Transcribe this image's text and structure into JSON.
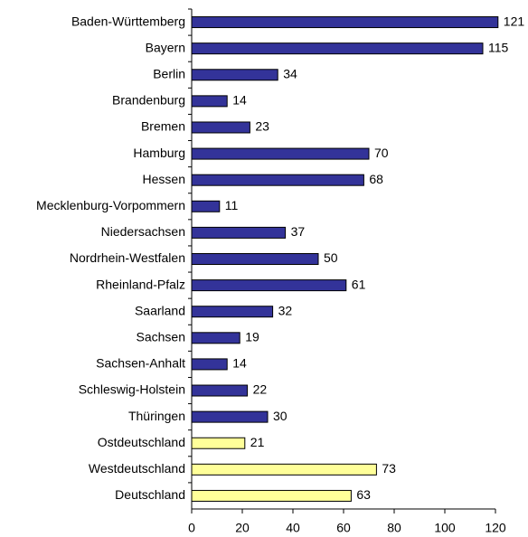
{
  "chart_data": {
    "type": "barh",
    "categories": [
      "Baden-Württemberg",
      "Bayern",
      "Berlin",
      "Brandenburg",
      "Bremen",
      "Hamburg",
      "Hessen",
      "Mecklenburg-Vorpommern",
      "Niedersachsen",
      "Nordrhein-Westfalen",
      "Rheinland-Pfalz",
      "Saarland",
      "Sachsen",
      "Sachsen-Anhalt",
      "Schleswig-Holstein",
      "Thüringen",
      "Ostdeutschland",
      "Westdeutschland",
      "Deutschland"
    ],
    "values": [
      121,
      115,
      34,
      14,
      23,
      70,
      68,
      11,
      37,
      50,
      61,
      32,
      19,
      14,
      22,
      30,
      21,
      73,
      63
    ],
    "colors": [
      "#333399",
      "#333399",
      "#333399",
      "#333399",
      "#333399",
      "#333399",
      "#333399",
      "#333399",
      "#333399",
      "#333399",
      "#333399",
      "#333399",
      "#333399",
      "#333399",
      "#333399",
      "#333399",
      "#ffff99",
      "#ffff99",
      "#ffff99"
    ],
    "xlim": [
      0,
      120
    ],
    "xticks": [
      0,
      20,
      40,
      60,
      80,
      100,
      120
    ]
  }
}
